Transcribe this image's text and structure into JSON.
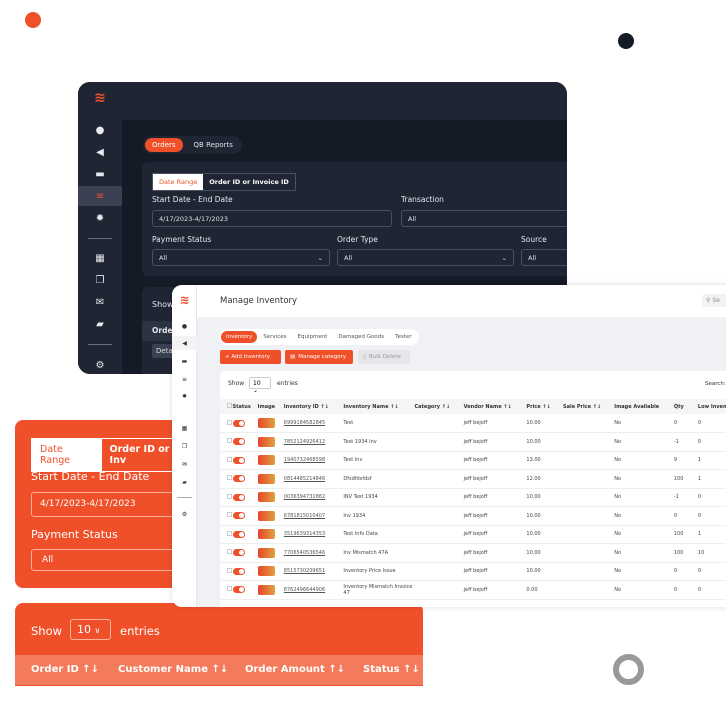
{
  "colors": {
    "accent": "#f05029",
    "dark": "#141a26",
    "navy_dot": "#141a26"
  },
  "dark_panel": {
    "tabs": [
      "Orders",
      "QB Reports"
    ],
    "filter_tabs": [
      "Date Range",
      "Order ID or Invoice ID"
    ],
    "start_end_label": "Start Date - End Date",
    "date_value": "4/17/2023-4/17/2023",
    "transaction_label": "Transaction",
    "transaction_value": "All",
    "payment_label": "Payment Status",
    "payment_value": "All",
    "order_type_label": "Order Type",
    "order_type_value": "All",
    "source_label": "Source",
    "source_value": "All",
    "show_label": "Show",
    "order_header": "Order",
    "detail_btn": "Deta"
  },
  "inventory": {
    "title": "Manage Inventory",
    "search_placeholder": "Se",
    "tabs": [
      "Inventory",
      "Services",
      "Equipment",
      "Damaged Goods",
      "Tester"
    ],
    "add_btn": "+ Add Inventory",
    "manage_btn": "Manage category",
    "bulk_btn": "Bulk Delete",
    "show": "Show",
    "entries_value": "10",
    "entries": "entries",
    "search_label": "Search:",
    "columns": [
      "",
      "Status",
      "Image",
      "Inventory ID ↑↓",
      "Inventory Name ↑↓",
      "Category ↑↓",
      "Vendor Name ↑↓",
      "Price ↑↓",
      "Sale Price ↑↓",
      "Image Available",
      "Qty",
      "Low Inventory"
    ],
    "rows": [
      [
        "6999184582845",
        "Test",
        "",
        "jeff bejoff",
        "10.00",
        "",
        "No",
        "0",
        "0"
      ],
      [
        "7852124926412",
        "Test 1934 Inv",
        "",
        "jeff bejoff",
        "10.00",
        "",
        "No",
        "-1",
        "0"
      ],
      [
        "1940732468598",
        "Test Inv",
        "",
        "jeff bejoff",
        "13.00",
        "",
        "No",
        "9",
        "1"
      ],
      [
        "0814485214846",
        "Dfsdfdsfdsf",
        "",
        "jeff bejoff",
        "12.00",
        "",
        "No",
        "100",
        "1"
      ],
      [
        "0036394731882",
        "INV Test 1934",
        "",
        "jeff bejoff",
        "10.00",
        "",
        "No",
        "-1",
        "0"
      ],
      [
        "6781815010407",
        "Inv 1934",
        "",
        "jeff bejoff",
        "10.00",
        "",
        "No",
        "0",
        "0"
      ],
      [
        "3519639314353",
        "Test Info Data",
        "",
        "jeff bejoff",
        "10.00",
        "",
        "No",
        "100",
        "1"
      ],
      [
        "7706540536546",
        "Inv Mismatch 47A",
        "",
        "jeff bejoff",
        "10.00",
        "",
        "No",
        "100",
        "10"
      ],
      [
        "8515730209651",
        "Inventory Price Issue",
        "",
        "jeff bejoff",
        "10.00",
        "",
        "No",
        "0",
        "0"
      ],
      [
        "8762496644906",
        "Inventory Mismatch Invoice 47",
        "",
        "jeff bejoff",
        "0.00",
        "",
        "No",
        "0",
        "0"
      ]
    ]
  },
  "orange_filter": {
    "tabs": [
      "Date Range",
      "Order ID or Inv"
    ],
    "start_end_label": "Start Date - End Date",
    "date_value": "4/17/2023-4/17/2023",
    "payment_label": "Payment Status",
    "payment_value": "All"
  },
  "orange_table": {
    "show": "Show",
    "entries_value": "10",
    "entries": "entries",
    "columns": [
      "Order ID ↑↓",
      "Customer Name ↑↓",
      "Order Amount ↑↓",
      "Status ↑↓"
    ]
  }
}
